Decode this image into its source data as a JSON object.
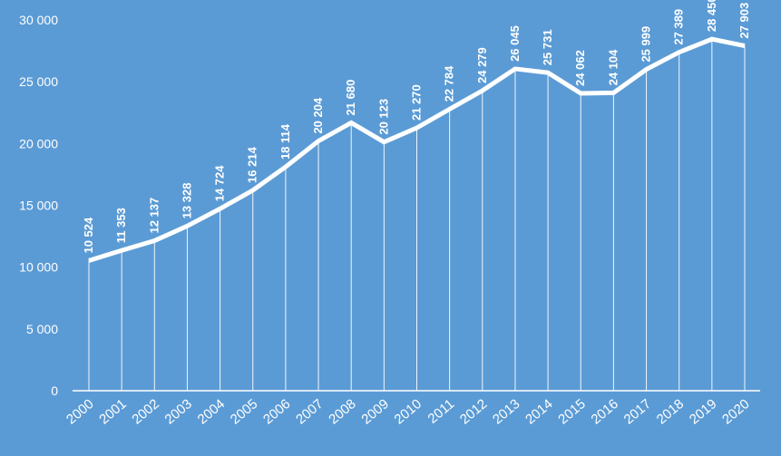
{
  "chart_data": {
    "type": "line",
    "title": "",
    "xlabel": "",
    "ylabel": "",
    "ylim": [
      0,
      30000
    ],
    "y_ticks": [
      "0",
      "5 000",
      "10 000",
      "15 000",
      "20 000",
      "25 000",
      "30 000"
    ],
    "grid": false,
    "drop_lines": true,
    "colors": {
      "background": "#5b9bd5",
      "line": "#ffffff",
      "text": "#ffffff"
    },
    "categories": [
      "2000",
      "2001",
      "2002",
      "2003",
      "2004",
      "2005",
      "2006",
      "2007",
      "2008",
      "2009",
      "2010",
      "2011",
      "2012",
      "2013",
      "2014",
      "2015",
      "2016",
      "2017",
      "2018",
      "2019",
      "2020"
    ],
    "values": [
      10524,
      11353,
      12137,
      13328,
      14724,
      16214,
      18114,
      20204,
      21680,
      20123,
      21270,
      22784,
      24279,
      26045,
      25731,
      24062,
      24104,
      25999,
      27389,
      28450,
      27903
    ],
    "data_labels": [
      "10 524",
      "11 353",
      "12 137",
      "13 328",
      "14 724",
      "16 214",
      "18 114",
      "20 204",
      "21 680",
      "20 123",
      "21 270",
      "22 784",
      "24 279",
      "26 045",
      "25 731",
      "24 062",
      "24 104",
      "25 999",
      "27 389",
      "28 450",
      "27 903"
    ]
  }
}
